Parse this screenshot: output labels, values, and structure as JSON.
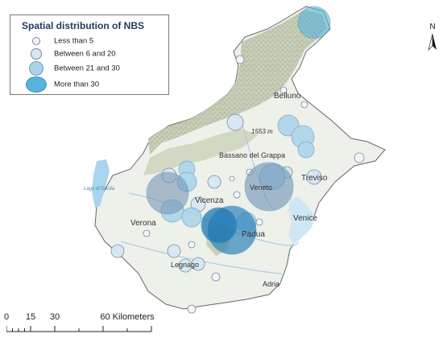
{
  "legend": {
    "title": "Spatial distribution of NBS",
    "classes": [
      {
        "label": "Less than 5",
        "fill": "#f2f6fb",
        "stroke": "#7a8899"
      },
      {
        "label": "Between 6 and 20",
        "fill": "#d7e7f4",
        "stroke": "#7a8899"
      },
      {
        "label": "Between 21 and 30",
        "fill": "#a9d3ea",
        "stroke": "#6f9fc0"
      },
      {
        "label": "More than 30",
        "fill": "#58b3dd",
        "stroke": "#3d8fbf"
      }
    ]
  },
  "places": {
    "belluno": "Belluno",
    "peak": "1553 m",
    "bassano": "Bassano del Grappa",
    "treviso": "Treviso",
    "veneto": "Veneto",
    "vicenza": "Vicenza",
    "verona": "Verona",
    "padua": "Padua",
    "venice": "Venice",
    "legnago": "Legnago",
    "adria": "Adria",
    "lake": "Lago di Garda"
  },
  "north_arrow": {
    "letter": "N"
  },
  "scale_bar": {
    "ticks": [
      "0",
      "15",
      "30",
      "60 Kilometers"
    ]
  },
  "colors": {
    "land": "#eef0ea",
    "mountain": "#c9cfb8",
    "water": "#a8d4ee",
    "boundary": "#666666"
  }
}
